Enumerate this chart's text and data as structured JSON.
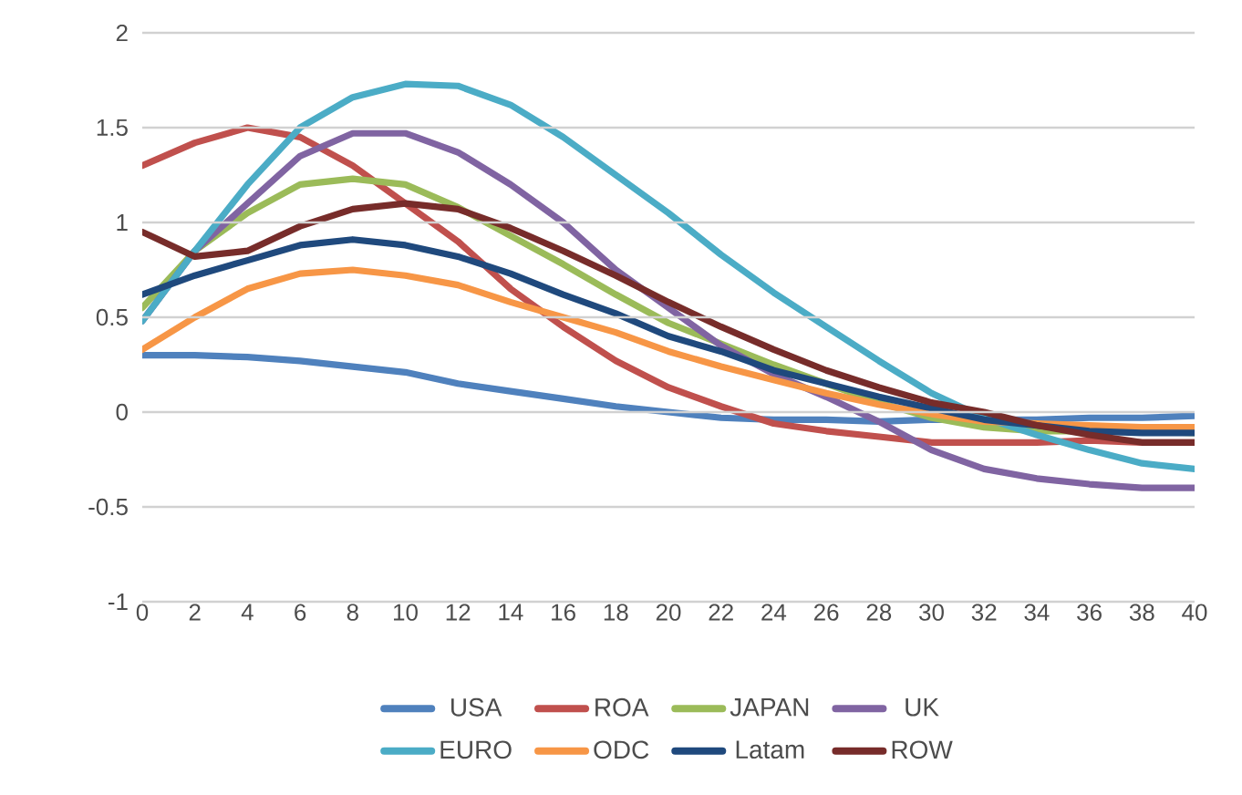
{
  "chart_data": {
    "type": "line",
    "x": [
      0,
      2,
      4,
      6,
      8,
      10,
      12,
      14,
      16,
      18,
      20,
      22,
      24,
      26,
      28,
      30,
      32,
      34,
      36,
      38,
      40
    ],
    "series": [
      {
        "name": "USA",
        "color": "#4f81bd",
        "values": [
          0.3,
          0.3,
          0.29,
          0.27,
          0.24,
          0.21,
          0.15,
          0.11,
          0.07,
          0.03,
          0.0,
          -0.03,
          -0.04,
          -0.04,
          -0.05,
          -0.04,
          -0.04,
          -0.04,
          -0.03,
          -0.03,
          -0.02
        ]
      },
      {
        "name": "ROA",
        "color": "#c0504d",
        "values": [
          1.3,
          1.42,
          1.5,
          1.45,
          1.3,
          1.1,
          0.9,
          0.65,
          0.45,
          0.27,
          0.13,
          0.03,
          -0.06,
          -0.1,
          -0.13,
          -0.16,
          -0.16,
          -0.16,
          -0.15,
          -0.16,
          -0.16
        ]
      },
      {
        "name": "JAPAN",
        "color": "#9bbb59",
        "values": [
          0.55,
          0.85,
          1.05,
          1.2,
          1.23,
          1.2,
          1.08,
          0.93,
          0.78,
          0.62,
          0.47,
          0.36,
          0.25,
          0.15,
          0.05,
          -0.03,
          -0.08,
          -0.1,
          -0.1,
          -0.1,
          -0.11
        ]
      },
      {
        "name": "UK",
        "color": "#8064a2",
        "values": [
          0.48,
          0.85,
          1.1,
          1.35,
          1.47,
          1.47,
          1.37,
          1.2,
          1.0,
          0.75,
          0.55,
          0.35,
          0.2,
          0.08,
          -0.05,
          -0.2,
          -0.3,
          -0.35,
          -0.38,
          -0.4,
          -0.4
        ]
      },
      {
        "name": "EURO",
        "color": "#4bacc6",
        "values": [
          0.48,
          0.85,
          1.2,
          1.5,
          1.66,
          1.73,
          1.72,
          1.62,
          1.45,
          1.25,
          1.05,
          0.83,
          0.63,
          0.45,
          0.27,
          0.1,
          -0.03,
          -0.12,
          -0.2,
          -0.27,
          -0.3
        ]
      },
      {
        "name": "ODC",
        "color": "#f79646",
        "values": [
          0.33,
          0.5,
          0.65,
          0.73,
          0.75,
          0.72,
          0.67,
          0.58,
          0.5,
          0.42,
          0.32,
          0.24,
          0.17,
          0.1,
          0.04,
          -0.01,
          -0.05,
          -0.06,
          -0.07,
          -0.08,
          -0.08
        ]
      },
      {
        "name": "Latam",
        "color": "#1f497d",
        "values": [
          0.62,
          0.72,
          0.8,
          0.88,
          0.91,
          0.88,
          0.82,
          0.73,
          0.62,
          0.52,
          0.4,
          0.32,
          0.22,
          0.15,
          0.08,
          0.02,
          -0.04,
          -0.07,
          -0.1,
          -0.11,
          -0.11
        ]
      },
      {
        "name": "ROW",
        "color": "#772c2a",
        "values": [
          0.95,
          0.82,
          0.85,
          0.98,
          1.07,
          1.1,
          1.07,
          0.97,
          0.85,
          0.72,
          0.58,
          0.45,
          0.33,
          0.22,
          0.13,
          0.05,
          0.0,
          -0.07,
          -0.12,
          -0.16,
          -0.16
        ]
      }
    ],
    "xlim": [
      0,
      40
    ],
    "xticks": [
      0,
      2,
      4,
      6,
      8,
      10,
      12,
      14,
      16,
      18,
      20,
      22,
      24,
      26,
      28,
      30,
      32,
      34,
      36,
      38,
      40
    ],
    "ylim": [
      -1,
      2
    ],
    "yticks": [
      -1,
      -0.5,
      0,
      0.5,
      1,
      1.5,
      2
    ],
    "grid": "y",
    "legend": "bottom",
    "marker": "none",
    "line_style": "solid"
  }
}
